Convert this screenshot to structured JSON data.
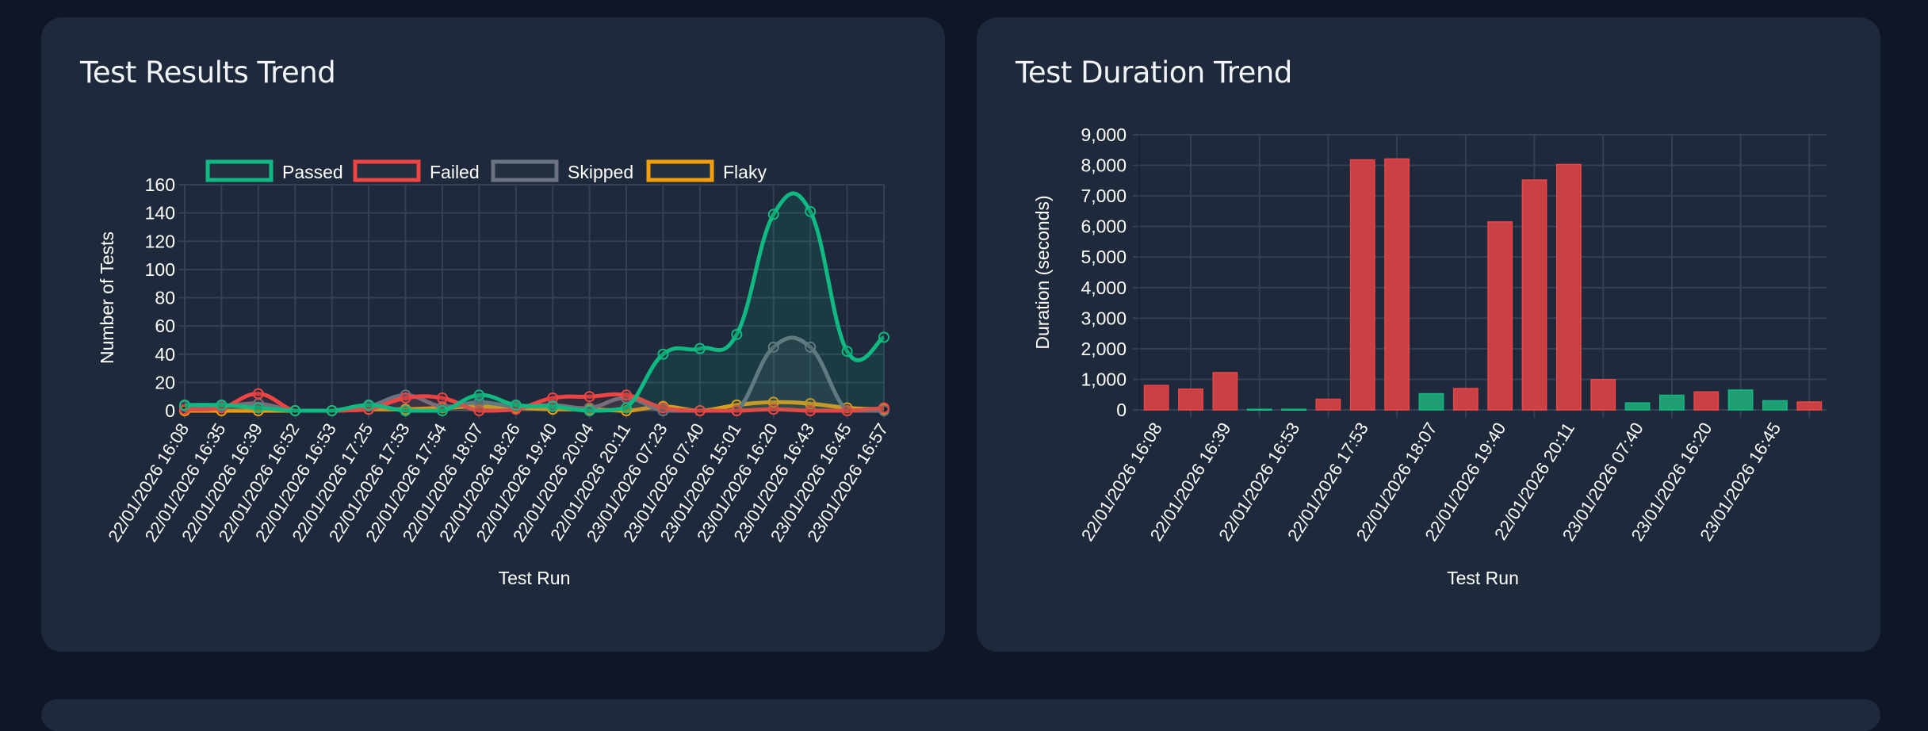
{
  "colors": {
    "passed": "#10b981",
    "failed": "#ef4444",
    "skipped": "#6b7280",
    "flaky": "#f59e0b",
    "grid": "#334155",
    "page_bg": "#0e1628",
    "card_bg": "#1e293b"
  },
  "cards": [
    {
      "title": "Test Results Trend"
    },
    {
      "title": "Test Duration Trend"
    }
  ],
  "chart_data": [
    {
      "type": "line",
      "title": "Test Results Trend",
      "xlabel": "Test Run",
      "ylabel": "Number of Tests",
      "ylim": [
        0,
        160
      ],
      "yticks": [
        "0",
        "20",
        "40",
        "60",
        "80",
        "100",
        "120",
        "140",
        "160"
      ],
      "grid": true,
      "legend": "top",
      "categories": [
        "22/01/2026 16:08",
        "22/01/2026 16:35",
        "22/01/2026 16:39",
        "22/01/2026 16:52",
        "22/01/2026 16:53",
        "22/01/2026 17:25",
        "22/01/2026 17:53",
        "22/01/2026 17:54",
        "22/01/2026 18:07",
        "22/01/2026 18:26",
        "22/01/2026 19:40",
        "22/01/2026 20:04",
        "22/01/2026 20:11",
        "23/01/2026 07:23",
        "23/01/2026 07:40",
        "23/01/2026 15:01",
        "23/01/2026 16:20",
        "23/01/2026 16:43",
        "23/01/2026 16:45",
        "23/01/2026 16:57"
      ],
      "series": [
        {
          "name": "Flaky",
          "color": "#f59e0b",
          "values": [
            0,
            0,
            0,
            0,
            0,
            1,
            1,
            2,
            3,
            2,
            1,
            1,
            0,
            3,
            0,
            4,
            6,
            5,
            2,
            1
          ]
        },
        {
          "name": "Skipped",
          "color": "#6b7280",
          "values": [
            3,
            3,
            5,
            0,
            0,
            3,
            11,
            3,
            6,
            3,
            4,
            2,
            9,
            0,
            0,
            0,
            45,
            45,
            0,
            0
          ]
        },
        {
          "name": "Failed",
          "color": "#ef4444",
          "values": [
            1,
            2,
            12,
            0,
            0,
            1,
            9,
            9,
            0,
            1,
            9,
            10,
            11,
            2,
            0,
            0,
            1,
            0,
            0,
            2
          ]
        },
        {
          "name": "Passed",
          "color": "#10b981",
          "values": [
            4,
            4,
            2,
            0,
            0,
            4,
            0,
            0,
            11,
            4,
            3,
            0,
            2,
            40,
            44,
            54,
            139,
            141,
            42,
            52
          ]
        }
      ],
      "legend_order": [
        "Passed",
        "Failed",
        "Skipped",
        "Flaky"
      ]
    },
    {
      "type": "bar",
      "title": "Test Duration Trend",
      "xlabel": "Test Run",
      "ylabel": "Duration (seconds)",
      "ylim": [
        0,
        9000
      ],
      "yticks": [
        "0",
        "1,000",
        "2,000",
        "3,000",
        "4,000",
        "5,000",
        "6,000",
        "7,000",
        "8,000",
        "9,000"
      ],
      "grid": true,
      "categories": [
        "22/01/2026 16:08",
        "22/01/2026 16:35",
        "22/01/2026 16:39",
        "22/01/2026 16:52",
        "22/01/2026 16:53",
        "22/01/2026 17:25",
        "22/01/2026 17:53",
        "22/01/2026 17:54",
        "22/01/2026 18:07",
        "22/01/2026 18:26",
        "22/01/2026 19:40",
        "22/01/2026 20:04",
        "22/01/2026 20:11",
        "23/01/2026 07:23",
        "23/01/2026 07:40",
        "23/01/2026 15:01",
        "23/01/2026 16:20",
        "23/01/2026 16:43",
        "23/01/2026 16:45",
        "23/01/2026 16:57"
      ],
      "visible_tick_labels": [
        "22/01/2026 16:08",
        "22/01/2026 16:39",
        "22/01/2026 16:53",
        "22/01/2026 17:53",
        "22/01/2026 18:07",
        "22/01/2026 19:40",
        "22/01/2026 20:11",
        "23/01/2026 07:40",
        "23/01/2026 16:20",
        "23/01/2026 16:45"
      ],
      "values": [
        800,
        680,
        1220,
        20,
        20,
        350,
        8180,
        8210,
        530,
        700,
        6150,
        7520,
        8030,
        990,
        230,
        480,
        590,
        650,
        300,
        260
      ],
      "bar_status": [
        "failed",
        "failed",
        "failed",
        "passed",
        "passed",
        "failed",
        "failed",
        "failed",
        "passed",
        "failed",
        "failed",
        "failed",
        "failed",
        "failed",
        "passed",
        "passed",
        "failed",
        "passed",
        "passed",
        "failed"
      ]
    }
  ]
}
